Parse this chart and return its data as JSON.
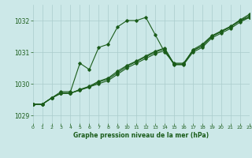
{
  "title": "Graphe pression niveau de la mer (hPa)",
  "bg_color": "#cce8e8",
  "grid_color": "#aacccc",
  "line_color": "#1a5c1a",
  "marker": "D",
  "markersize": 1.8,
  "linewidth": 0.8,
  "xlim": [
    0,
    23
  ],
  "ylim": [
    1028.75,
    1032.5
  ],
  "xticks": [
    0,
    1,
    2,
    3,
    4,
    5,
    6,
    7,
    8,
    9,
    10,
    11,
    12,
    13,
    14,
    15,
    16,
    17,
    18,
    19,
    20,
    21,
    22,
    23
  ],
  "yticks": [
    1029,
    1030,
    1031,
    1032
  ],
  "series": [
    [
      1029.35,
      1029.35,
      1029.55,
      1029.75,
      1029.75,
      1030.65,
      1030.45,
      1031.15,
      1031.25,
      1031.8,
      1032.0,
      1032.0,
      1032.1,
      1031.55,
      1031.0,
      1030.65,
      1030.65,
      1031.05,
      1031.2,
      1031.5,
      1031.65,
      1031.8,
      1032.0,
      1032.1
    ],
    [
      1029.35,
      1029.35,
      1029.55,
      1029.7,
      1029.7,
      1029.8,
      1029.9,
      1030.0,
      1030.1,
      1030.3,
      1030.5,
      1030.65,
      1030.8,
      1030.95,
      1031.05,
      1030.6,
      1030.6,
      1031.0,
      1031.15,
      1031.45,
      1031.6,
      1031.75,
      1031.95,
      1032.1
    ],
    [
      1029.35,
      1029.35,
      1029.55,
      1029.7,
      1029.7,
      1029.8,
      1029.9,
      1030.05,
      1030.15,
      1030.35,
      1030.55,
      1030.7,
      1030.85,
      1031.0,
      1031.1,
      1030.62,
      1030.62,
      1031.05,
      1031.2,
      1031.5,
      1031.65,
      1031.8,
      1032.0,
      1032.15
    ],
    [
      1029.35,
      1029.35,
      1029.55,
      1029.7,
      1029.7,
      1029.82,
      1029.92,
      1030.08,
      1030.18,
      1030.4,
      1030.58,
      1030.72,
      1030.88,
      1031.03,
      1031.13,
      1030.62,
      1030.62,
      1031.08,
      1031.25,
      1031.52,
      1031.67,
      1031.82,
      1032.02,
      1032.2
    ]
  ]
}
